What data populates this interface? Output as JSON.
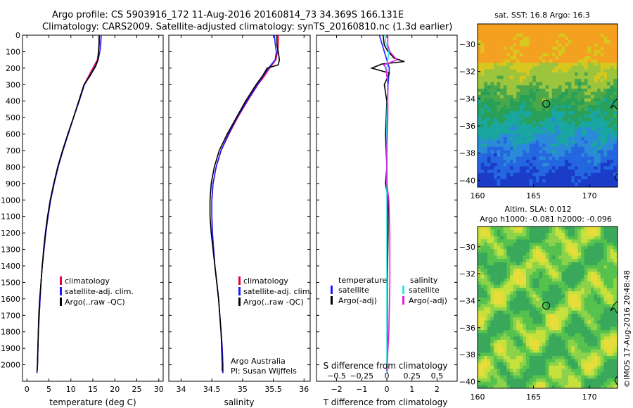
{
  "header": {
    "line1": "Argo profile: CS 5903916_172 11-Aug-2016 20160814_73 34.369S 166.131E",
    "line2": "Climatology: CARS2009. Satellite-adjusted climatology: synTS_20160810.nc (1.3d earlier)"
  },
  "footer": {
    "institution": "Argo Australia",
    "pi": "PI: Susan Wijffels",
    "credit": "©IMOS 17-Aug-2016 20:48:48"
  },
  "colors": {
    "climatology": "#e8003a",
    "satellite": "#1a1aff",
    "argo": "#000000",
    "satellite_salinity": "#33e6e6",
    "argo_salinity": "#e020e0",
    "marker": "#000000"
  },
  "chart_data": [
    {
      "type": "line",
      "id": "temperature",
      "xlabel": "temperature (deg C)",
      "ylabel": "",
      "xlim": [
        -1,
        31
      ],
      "ylim": [
        2100,
        0
      ],
      "xticks": [
        0,
        5,
        10,
        15,
        20,
        25,
        30
      ],
      "yticks": [
        0,
        100,
        200,
        300,
        400,
        500,
        600,
        700,
        800,
        900,
        1000,
        1100,
        1200,
        1300,
        1400,
        1500,
        1600,
        1700,
        1800,
        1900,
        2000
      ],
      "legend": {
        "position": "center-right",
        "items": [
          "climatology",
          "satellite-adj. clim.",
          "Argo(..raw -QC)"
        ]
      },
      "series": [
        {
          "name": "climatology",
          "color_key": "climatology",
          "points": [
            [
              16.5,
              0
            ],
            [
              16.5,
              50
            ],
            [
              16.3,
              100
            ],
            [
              16.0,
              150
            ],
            [
              15.0,
              200
            ],
            [
              14.0,
              250
            ],
            [
              13.0,
              300
            ],
            [
              11.8,
              400
            ],
            [
              10.6,
              500
            ],
            [
              9.4,
              600
            ],
            [
              8.2,
              700
            ],
            [
              7.1,
              800
            ],
            [
              6.2,
              900
            ],
            [
              5.4,
              1000
            ],
            [
              4.8,
              1100
            ],
            [
              4.3,
              1200
            ],
            [
              3.9,
              1300
            ],
            [
              3.5,
              1400
            ],
            [
              3.2,
              1500
            ],
            [
              3.0,
              1600
            ],
            [
              2.8,
              1700
            ],
            [
              2.6,
              1800
            ],
            [
              2.5,
              1900
            ],
            [
              2.4,
              2000
            ],
            [
              2.3,
              2050
            ]
          ]
        },
        {
          "name": "satellite-adj. clim.",
          "color_key": "satellite",
          "points": [
            [
              16.9,
              0
            ],
            [
              16.8,
              50
            ],
            [
              16.6,
              100
            ],
            [
              16.2,
              150
            ],
            [
              15.3,
              200
            ],
            [
              14.2,
              250
            ],
            [
              13.1,
              300
            ],
            [
              11.9,
              400
            ],
            [
              10.6,
              500
            ],
            [
              9.4,
              600
            ],
            [
              8.2,
              700
            ],
            [
              7.1,
              800
            ],
            [
              6.2,
              900
            ],
            [
              5.4,
              1000
            ],
            [
              4.8,
              1100
            ],
            [
              4.3,
              1200
            ],
            [
              3.9,
              1300
            ],
            [
              3.5,
              1400
            ],
            [
              3.2,
              1500
            ],
            [
              3.0,
              1600
            ],
            [
              2.8,
              1700
            ],
            [
              2.6,
              1800
            ],
            [
              2.5,
              1900
            ],
            [
              2.4,
              2000
            ],
            [
              2.3,
              2050
            ]
          ]
        },
        {
          "name": "Argo(..raw -QC)",
          "color_key": "argo",
          "points": [
            [
              16.4,
              0
            ],
            [
              16.4,
              50
            ],
            [
              16.3,
              100
            ],
            [
              16.2,
              150
            ],
            [
              15.6,
              190
            ],
            [
              14.3,
              250
            ],
            [
              13.0,
              300
            ],
            [
              11.8,
              400
            ],
            [
              10.6,
              500
            ],
            [
              9.3,
              600
            ],
            [
              8.1,
              700
            ],
            [
              7.0,
              800
            ],
            [
              6.1,
              900
            ],
            [
              5.3,
              1000
            ],
            [
              4.7,
              1100
            ],
            [
              4.2,
              1200
            ],
            [
              3.8,
              1300
            ],
            [
              3.5,
              1400
            ],
            [
              3.2,
              1500
            ],
            [
              2.9,
              1600
            ],
            [
              2.7,
              1700
            ],
            [
              2.6,
              1800
            ],
            [
              2.5,
              1900
            ],
            [
              2.4,
              2000
            ],
            [
              2.3,
              2040
            ]
          ]
        }
      ]
    },
    {
      "type": "line",
      "id": "salinity",
      "xlabel": "salinity",
      "ylabel": "",
      "xlim": [
        33.8,
        36.1
      ],
      "ylim": [
        2100,
        0
      ],
      "xticks": [
        34,
        34.5,
        35,
        35.5,
        36
      ],
      "legend": {
        "position": "center-right",
        "items": [
          "climatology",
          "satellite-adj. clim.",
          "Argo(..raw -QC)"
        ]
      },
      "series": [
        {
          "name": "climatology",
          "color_key": "climatology",
          "points": [
            [
              35.58,
              0
            ],
            [
              35.58,
              50
            ],
            [
              35.57,
              100
            ],
            [
              35.54,
              150
            ],
            [
              35.44,
              200
            ],
            [
              35.35,
              250
            ],
            [
              35.25,
              300
            ],
            [
              35.08,
              400
            ],
            [
              34.92,
              500
            ],
            [
              34.78,
              600
            ],
            [
              34.65,
              700
            ],
            [
              34.57,
              800
            ],
            [
              34.52,
              900
            ],
            [
              34.5,
              1000
            ],
            [
              34.5,
              1100
            ],
            [
              34.51,
              1200
            ],
            [
              34.53,
              1300
            ],
            [
              34.55,
              1400
            ],
            [
              34.58,
              1500
            ],
            [
              34.61,
              1600
            ],
            [
              34.63,
              1700
            ],
            [
              34.65,
              1800
            ],
            [
              34.67,
              1900
            ],
            [
              34.68,
              2000
            ],
            [
              34.68,
              2050
            ]
          ]
        },
        {
          "name": "satellite-adj. clim.",
          "color_key": "satellite",
          "points": [
            [
              35.52,
              0
            ],
            [
              35.53,
              50
            ],
            [
              35.55,
              100
            ],
            [
              35.53,
              150
            ],
            [
              35.42,
              200
            ],
            [
              35.33,
              250
            ],
            [
              35.24,
              300
            ],
            [
              35.07,
              400
            ],
            [
              34.91,
              500
            ],
            [
              34.77,
              600
            ],
            [
              34.65,
              700
            ],
            [
              34.57,
              800
            ],
            [
              34.52,
              900
            ],
            [
              34.5,
              1000
            ],
            [
              34.5,
              1100
            ],
            [
              34.51,
              1200
            ],
            [
              34.53,
              1300
            ],
            [
              34.55,
              1400
            ],
            [
              34.58,
              1500
            ],
            [
              34.61,
              1600
            ],
            [
              34.63,
              1700
            ],
            [
              34.65,
              1800
            ],
            [
              34.67,
              1900
            ],
            [
              34.68,
              2000
            ],
            [
              34.68,
              2050
            ]
          ]
        },
        {
          "name": "Argo(..raw -QC)",
          "color_key": "argo",
          "points": [
            [
              35.56,
              0
            ],
            [
              35.56,
              60
            ],
            [
              35.58,
              100
            ],
            [
              35.6,
              150
            ],
            [
              35.58,
              180
            ],
            [
              35.4,
              200
            ],
            [
              35.32,
              250
            ],
            [
              35.22,
              300
            ],
            [
              35.05,
              400
            ],
            [
              34.9,
              500
            ],
            [
              34.75,
              600
            ],
            [
              34.62,
              700
            ],
            [
              34.54,
              800
            ],
            [
              34.49,
              900
            ],
            [
              34.47,
              1000
            ],
            [
              34.47,
              1100
            ],
            [
              34.49,
              1200
            ],
            [
              34.52,
              1300
            ],
            [
              34.55,
              1400
            ],
            [
              34.58,
              1500
            ],
            [
              34.61,
              1600
            ],
            [
              34.63,
              1700
            ],
            [
              34.65,
              1800
            ],
            [
              34.66,
              1900
            ],
            [
              34.67,
              2000
            ],
            [
              34.67,
              2040
            ]
          ]
        }
      ],
      "annotations": [
        "Argo Australia",
        "PI: Susan Wijffels"
      ]
    },
    {
      "type": "line",
      "id": "difference",
      "xlabel": "T difference from climatology",
      "xlabel_top": "S difference from climatology",
      "ylabel": "",
      "xlim": [
        -2.8,
        2.8
      ],
      "ylim": [
        2100,
        0
      ],
      "xticks": [
        -2,
        -1,
        0,
        1,
        2
      ],
      "xticks_top": [
        -0.5,
        -0.25,
        0,
        0.25,
        0.5
      ],
      "legend": {
        "position": "center",
        "temperature_title": "temperature",
        "salinity_title": "salinity",
        "temperature_items": [
          "satellite",
          "Argo(-adj)"
        ],
        "salinity_items": [
          "satellite",
          "Argo(-adj)"
        ]
      },
      "series": [
        {
          "name": "temperature satellite",
          "color_key": "satellite",
          "points": [
            [
              -0.3,
              0
            ],
            [
              -0.2,
              50
            ],
            [
              -0.1,
              100
            ],
            [
              0.0,
              150
            ],
            [
              0.1,
              200
            ],
            [
              0.05,
              300
            ],
            [
              0.0,
              500
            ],
            [
              0.0,
              800
            ],
            [
              0.02,
              1000
            ],
            [
              0.02,
              1200
            ],
            [
              0.01,
              1500
            ],
            [
              0.01,
              1800
            ],
            [
              0.01,
              2050
            ]
          ]
        },
        {
          "name": "temperature Argo(-adj)",
          "color_key": "argo",
          "points": [
            [
              -0.15,
              0
            ],
            [
              -0.1,
              60
            ],
            [
              0.05,
              100
            ],
            [
              0.3,
              140
            ],
            [
              0.7,
              160
            ],
            [
              -0.2,
              175
            ],
            [
              -0.6,
              200
            ],
            [
              0.1,
              230
            ],
            [
              -0.1,
              300
            ],
            [
              0.0,
              400
            ],
            [
              -0.05,
              600
            ],
            [
              0.0,
              800
            ],
            [
              -0.05,
              900
            ],
            [
              0.05,
              1000
            ],
            [
              0.05,
              1200
            ],
            [
              0.02,
              1500
            ],
            [
              0.02,
              1800
            ],
            [
              0.0,
              2040
            ]
          ]
        },
        {
          "name": "salinity satellite",
          "color_key": "satellite_salinity",
          "points": [
            [
              -0.02,
              0
            ],
            [
              -0.01,
              50
            ],
            [
              0.02,
              100
            ],
            [
              0.0,
              200
            ],
            [
              0.01,
              300
            ],
            [
              0.0,
              500
            ],
            [
              0.0,
              700
            ],
            [
              0.0,
              900
            ],
            [
              0.0,
              1200
            ],
            [
              0.0,
              1500
            ],
            [
              0.0,
              1800
            ],
            [
              0.0,
              2050
            ]
          ]
        },
        {
          "name": "salinity Argo(-adj)",
          "color_key": "argo_salinity",
          "points": [
            [
              0.01,
              0
            ],
            [
              0.01,
              60
            ],
            [
              0.03,
              100
            ],
            [
              0.1,
              150
            ],
            [
              -0.03,
              180
            ],
            [
              -0.01,
              200
            ],
            [
              0.01,
              300
            ],
            [
              0.01,
              500
            ],
            [
              0.0,
              700
            ],
            [
              0.0,
              900
            ],
            [
              0.02,
              1000
            ],
            [
              0.03,
              1200
            ],
            [
              0.03,
              1500
            ],
            [
              0.02,
              1800
            ],
            [
              0.0,
              2040
            ]
          ]
        }
      ]
    },
    {
      "type": "heatmap",
      "id": "sst_map",
      "title": "sat. SST: 16.8  Argo: 16.3",
      "xlim": [
        160,
        172.5
      ],
      "ylim": [
        -40.5,
        -28.5
      ],
      "xticks": [
        160,
        165,
        170
      ],
      "yticks": [
        -30,
        -32,
        -34,
        -36,
        -38,
        -40
      ],
      "marker": [
        166.13,
        -34.37
      ]
    },
    {
      "type": "heatmap",
      "id": "sla_map",
      "title": "Altim. SLA: 0.012",
      "subtitle": "Argo h1000: -0.081  h2000: -0.096",
      "xlim": [
        160,
        172.5
      ],
      "ylim": [
        -40.5,
        -28.5
      ],
      "xticks": [
        160,
        165,
        170
      ],
      "yticks": [
        -30,
        -32,
        -34,
        -36,
        -38,
        -40
      ],
      "marker": [
        166.13,
        -34.37
      ]
    }
  ]
}
